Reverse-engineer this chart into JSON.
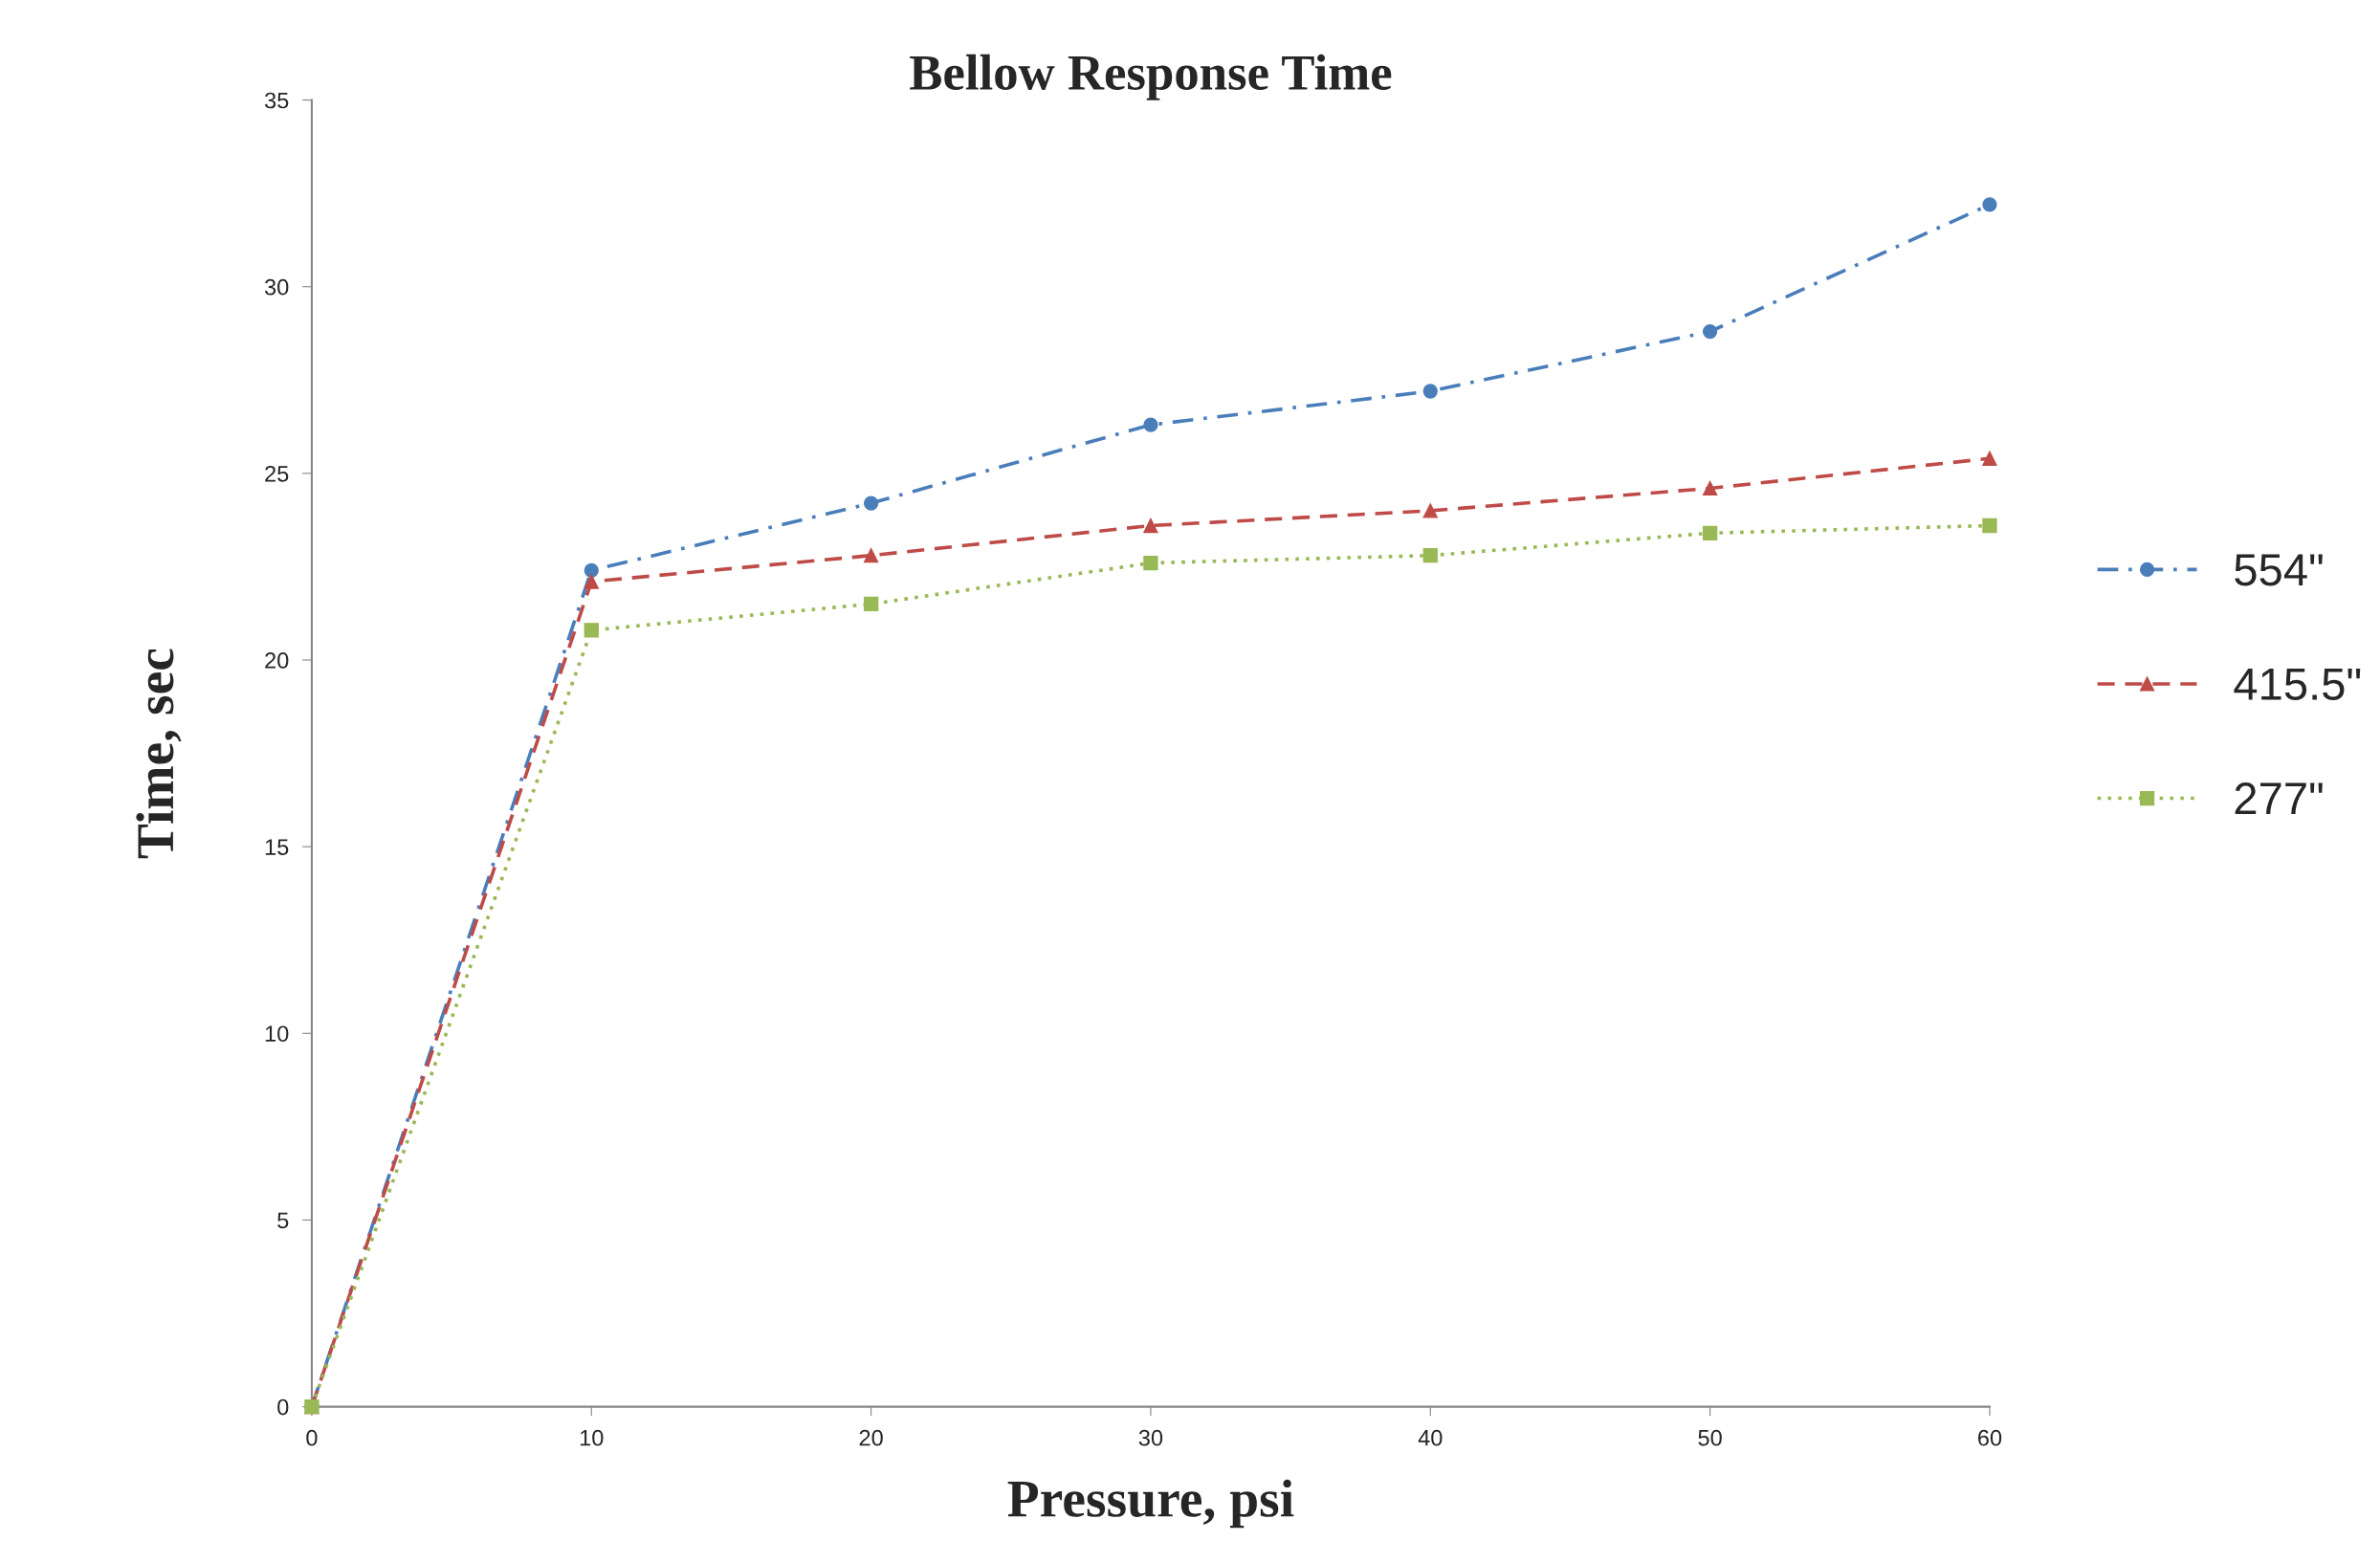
{
  "chart_data": {
    "type": "line",
    "title": "Bellow Response Time",
    "xlabel": "Pressure, psi",
    "ylabel": "Time, sec",
    "x": [
      0,
      10,
      20,
      30,
      40,
      50,
      60
    ],
    "series": [
      {
        "name": "554\"",
        "color": "#4a7ebb",
        "marker": "circle",
        "line_style": "dashdot",
        "values": [
          0,
          22.4,
          24.2,
          26.3,
          27.2,
          28.8,
          32.2
        ]
      },
      {
        "name": "415.5\"",
        "color": "#be4b48",
        "marker": "triangle",
        "line_style": "dashed",
        "values": [
          0,
          22.1,
          22.8,
          23.6,
          24.0,
          24.6,
          25.4
        ]
      },
      {
        "name": "277\"",
        "color": "#98b954",
        "marker": "square",
        "line_style": "dotted",
        "values": [
          0,
          20.8,
          21.5,
          22.6,
          22.8,
          23.4,
          23.6
        ]
      }
    ],
    "xlim": [
      0,
      60
    ],
    "xticks": [
      0,
      10,
      20,
      30,
      40,
      50,
      60
    ],
    "ylim": [
      0,
      35
    ],
    "yticks": [
      0,
      5,
      10,
      15,
      20,
      25,
      30,
      35
    ],
    "grid": false,
    "legend": "right"
  }
}
